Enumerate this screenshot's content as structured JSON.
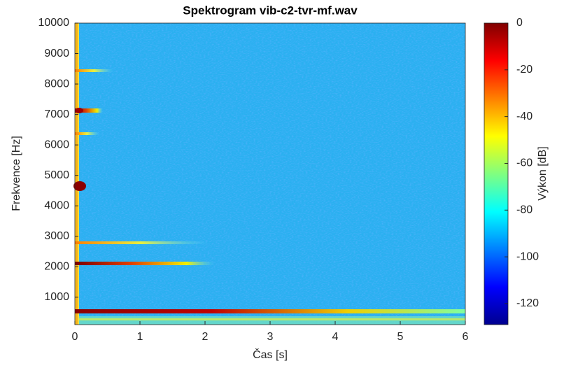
{
  "chart_data": {
    "type": "spectrogram",
    "title": "Spektrogram vib-c2-tvr-mf.wav",
    "x_label": "Čas [s]",
    "y_label": "Frekvence [Hz]",
    "colorbar_label": "Výkon [dB]",
    "xlim": [
      0,
      6
    ],
    "xticks": [
      0,
      1,
      2,
      3,
      4,
      5,
      6
    ],
    "ylim": [
      100,
      10000
    ],
    "yticks": [
      1000,
      2000,
      3000,
      4000,
      5000,
      6000,
      7000,
      8000,
      9000,
      10000
    ],
    "clim": [
      -129,
      0
    ],
    "cticks": [
      0,
      -20,
      -40,
      -60,
      -80,
      -100,
      -120
    ],
    "colormap": "jet"
  }
}
